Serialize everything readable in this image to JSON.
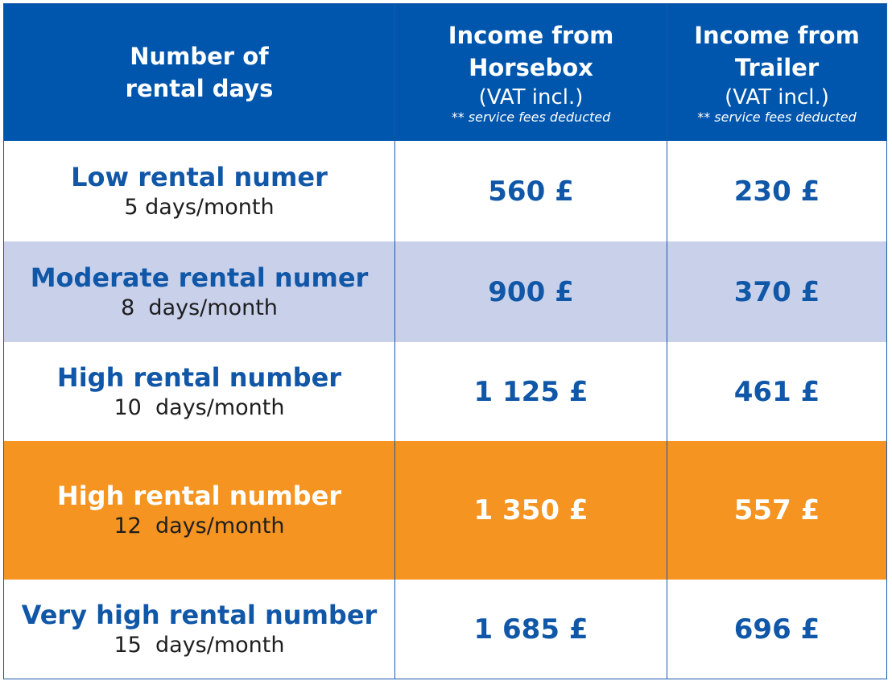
{
  "header": {
    "col1_line1": "Number of",
    "col1_line2": "rental days",
    "col2_line1": "Income from",
    "col2_line2": "Horsebox",
    "col2_sub": "(VAT incl.)",
    "col2_note": "** service fees deducted",
    "col3_line1": "Income from",
    "col3_line2": "Trailer",
    "col3_sub": "(VAT incl.)",
    "col3_note": "** service fees deducted"
  },
  "rows": [
    {
      "label": "Low rental numer",
      "days": "5 days/month",
      "horsebox": "560 £",
      "trailer": "230 £"
    },
    {
      "label": "Moderate rental numer",
      "days": "8  days/month",
      "horsebox": "900 £",
      "trailer": "370 £"
    },
    {
      "label": "High rental number",
      "days": "10  days/month",
      "horsebox": "1 125 £",
      "trailer": "461 £"
    },
    {
      "label": "High rental number",
      "days": "12  days/month",
      "horsebox": "1 350 £",
      "trailer": "557 £"
    },
    {
      "label": "Very high rental number",
      "days": "15  days/month",
      "horsebox": "1 685 £",
      "trailer": "696 £"
    }
  ],
  "colors": {
    "header_blue": "#0056ad",
    "text_blue": "#1157a8",
    "lavender_row": "#c8d0ea",
    "highlight_orange": "#f59420"
  }
}
